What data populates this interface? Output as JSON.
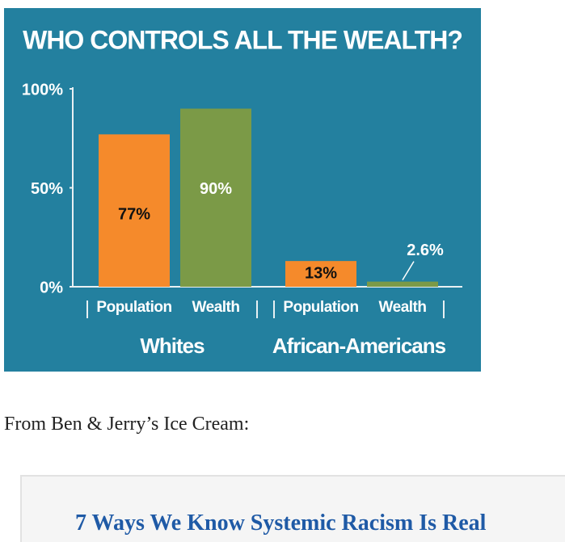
{
  "page": {
    "caption": "From Ben & Jerry’s Ice Cream:",
    "quote_heading": "7 Ways We Know Systemic Racism Is Real"
  },
  "chart_data": {
    "type": "bar",
    "title": "WHO CONTROLS ALL THE WEALTH?",
    "categories": [
      "Whites",
      "African-Americans"
    ],
    "series": [
      {
        "name": "Population",
        "color": "#f58a2b",
        "values": [
          77,
          13
        ],
        "value_labels": [
          "77%",
          "13%"
        ]
      },
      {
        "name": "Wealth",
        "color": "#7b9a47",
        "values": [
          90,
          2.6
        ],
        "value_labels": [
          "90%",
          "2.6%"
        ]
      }
    ],
    "ylim": [
      0,
      100
    ],
    "yticks": [
      {
        "value": 0,
        "label": "0%"
      },
      {
        "value": 50,
        "label": "50%"
      },
      {
        "value": 100,
        "label": "100%"
      }
    ]
  }
}
